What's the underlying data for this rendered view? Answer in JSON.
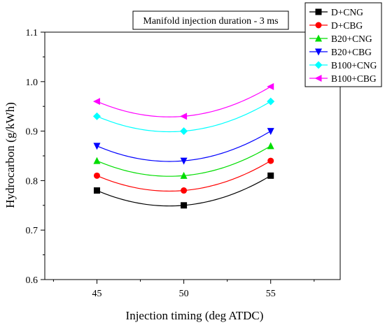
{
  "chart_data": {
    "type": "line",
    "annotation": "Manifold injection duration - 3 ms",
    "xlabel": "Injection timing (deg ATDC)",
    "ylabel": "Hydrocarbon (g/kWh)",
    "x": [
      45,
      50,
      55
    ],
    "x_ticks": [
      "45",
      "50",
      "55"
    ],
    "xlim": [
      42,
      59
    ],
    "ylim": [
      0.6,
      1.1
    ],
    "y_ticks": [
      "0.6",
      "0.7",
      "0.8",
      "0.9",
      "1.0",
      "1.1"
    ],
    "grid": false,
    "legend_position": "top-right",
    "series": [
      {
        "name": "D+CNG",
        "values": [
          0.78,
          0.75,
          0.81
        ],
        "color": "#000000",
        "marker": "square"
      },
      {
        "name": "D+CBG",
        "values": [
          0.81,
          0.78,
          0.84
        ],
        "color": "#ff0000",
        "marker": "circle"
      },
      {
        "name": "B20+CNG",
        "values": [
          0.84,
          0.81,
          0.87
        ],
        "color": "#00dd00",
        "marker": "triangle-up"
      },
      {
        "name": "B20+CBG",
        "values": [
          0.87,
          0.84,
          0.9
        ],
        "color": "#0000ff",
        "marker": "triangle-down"
      },
      {
        "name": "B100+CNG",
        "values": [
          0.93,
          0.9,
          0.96
        ],
        "color": "#00ffff",
        "marker": "diamond"
      },
      {
        "name": "B100+CBG",
        "values": [
          0.96,
          0.93,
          0.99
        ],
        "color": "#ff00ff",
        "marker": "triangle-left"
      }
    ]
  }
}
